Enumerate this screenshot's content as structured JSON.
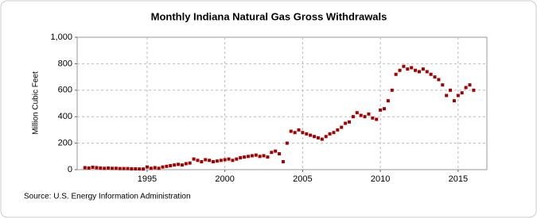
{
  "chart_data": {
    "type": "scatter",
    "title": "Monthly Indiana Natural Gas Gross Withdrawals",
    "y_label": "Million Cubic Feet",
    "source": "Source: U.S. Energy Information Administration",
    "color": "#a50000",
    "grid": true,
    "xlim": [
      1990.5,
      2016.85
    ],
    "xticks": [
      1995,
      2000,
      2005,
      2010,
      2015
    ],
    "ylim": [
      0,
      1000
    ],
    "yticks": [
      0,
      200,
      400,
      600,
      800,
      {
        "value": 1000,
        "label": "1,000"
      }
    ],
    "x": [
      1991,
      1991.25,
      1991.5,
      1991.75,
      1992,
      1992.25,
      1992.5,
      1992.75,
      1993,
      1993.25,
      1993.5,
      1993.75,
      1994,
      1994.25,
      1994.5,
      1994.75,
      1995,
      1995.25,
      1995.5,
      1995.75,
      1996,
      1996.25,
      1996.5,
      1996.75,
      1997,
      1997.25,
      1997.5,
      1997.75,
      1998,
      1998.25,
      1998.5,
      1998.75,
      1999,
      1999.25,
      1999.5,
      1999.75,
      2000,
      2000.25,
      2000.5,
      2000.75,
      2001,
      2001.25,
      2001.5,
      2001.75,
      2002,
      2002.25,
      2002.5,
      2002.75,
      2003,
      2003.25,
      2003.5,
      2003.75,
      2004,
      2004.25,
      2004.5,
      2004.75,
      2005,
      2005.25,
      2005.5,
      2005.75,
      2006,
      2006.25,
      2006.5,
      2006.75,
      2007,
      2007.25,
      2007.5,
      2007.75,
      2008,
      2008.25,
      2008.5,
      2008.75,
      2009,
      2009.25,
      2009.5,
      2009.75,
      2010,
      2010.25,
      2010.5,
      2010.75,
      2011,
      2011.25,
      2011.5,
      2011.75,
      2012,
      2012.25,
      2012.5,
      2012.75,
      2013,
      2013.25,
      2013.5,
      2013.75,
      2014,
      2014.25,
      2014.5,
      2014.75,
      2015,
      2015.25,
      2015.5,
      2015.75,
      2016
    ],
    "values": [
      15,
      12,
      18,
      15,
      12,
      10,
      12,
      10,
      10,
      8,
      8,
      8,
      6,
      6,
      5,
      5,
      20,
      10,
      15,
      10,
      20,
      25,
      30,
      35,
      40,
      35,
      45,
      50,
      80,
      70,
      60,
      75,
      70,
      60,
      65,
      70,
      75,
      80,
      70,
      80,
      90,
      95,
      100,
      105,
      110,
      100,
      105,
      95,
      130,
      140,
      120,
      60,
      200,
      290,
      280,
      300,
      280,
      270,
      260,
      250,
      240,
      230,
      250,
      270,
      280,
      300,
      320,
      350,
      360,
      400,
      430,
      410,
      400,
      420,
      390,
      380,
      450,
      460,
      520,
      600,
      720,
      750,
      780,
      760,
      770,
      750,
      740,
      760,
      740,
      720,
      700,
      680,
      640,
      560,
      600,
      520,
      560,
      580,
      620,
      640,
      600
    ]
  }
}
